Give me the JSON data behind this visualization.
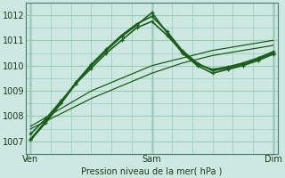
{
  "title": "Pression niveau de la mer( hPa )",
  "x_ticks": [
    0,
    48,
    96
  ],
  "x_tick_labels": [
    "Ven",
    "Sam",
    "Dim"
  ],
  "ylim": [
    1006.5,
    1012.5
  ],
  "yticks": [
    1007,
    1008,
    1009,
    1010,
    1011,
    1012
  ],
  "xlim": [
    -2,
    98
  ],
  "bg_color": "#cce8e0",
  "grid_color": "#99ccbb",
  "line_color": "#1a5c1a",
  "minor_grid_x": 8,
  "lines": [
    {
      "x": [
        0,
        12,
        24,
        36,
        48,
        60,
        72,
        84,
        96
      ],
      "y": [
        1007.5,
        1008.1,
        1008.7,
        1009.2,
        1009.7,
        1010.1,
        1010.4,
        1010.6,
        1010.8
      ],
      "marker": false,
      "lw": 0.9
    },
    {
      "x": [
        0,
        12,
        24,
        36,
        48,
        60,
        72,
        84,
        96
      ],
      "y": [
        1007.6,
        1008.3,
        1009.0,
        1009.5,
        1010.0,
        1010.3,
        1010.6,
        1010.8,
        1011.0
      ],
      "marker": false,
      "lw": 0.9
    },
    {
      "x": [
        0,
        6,
        12,
        18,
        24,
        30,
        36,
        42,
        48,
        54,
        60,
        66,
        72,
        78,
        84,
        90,
        96
      ],
      "y": [
        1007.3,
        1007.9,
        1008.6,
        1009.3,
        1009.9,
        1010.5,
        1011.0,
        1011.5,
        1011.75,
        1011.2,
        1010.55,
        1010.05,
        1009.85,
        1009.95,
        1010.1,
        1010.3,
        1010.55
      ],
      "marker": true,
      "lw": 1.2
    },
    {
      "x": [
        0,
        6,
        12,
        18,
        24,
        30,
        36,
        42,
        48,
        54,
        60,
        66,
        72,
        78,
        84,
        90,
        96
      ],
      "y": [
        1007.1,
        1007.8,
        1008.55,
        1009.35,
        1010.05,
        1010.65,
        1011.2,
        1011.65,
        1011.95,
        1011.35,
        1010.6,
        1010.1,
        1009.8,
        1009.9,
        1010.05,
        1010.25,
        1010.5
      ],
      "marker": true,
      "lw": 1.2
    },
    {
      "x": [
        0,
        6,
        12,
        18,
        24,
        30,
        36,
        42,
        48,
        54,
        60,
        66,
        72,
        78,
        84,
        90,
        96
      ],
      "y": [
        1007.05,
        1007.75,
        1008.5,
        1009.3,
        1010.0,
        1010.6,
        1011.15,
        1011.6,
        1012.1,
        1011.3,
        1010.5,
        1010.0,
        1009.7,
        1009.85,
        1010.0,
        1010.2,
        1010.45
      ],
      "marker": true,
      "lw": 1.2
    }
  ]
}
